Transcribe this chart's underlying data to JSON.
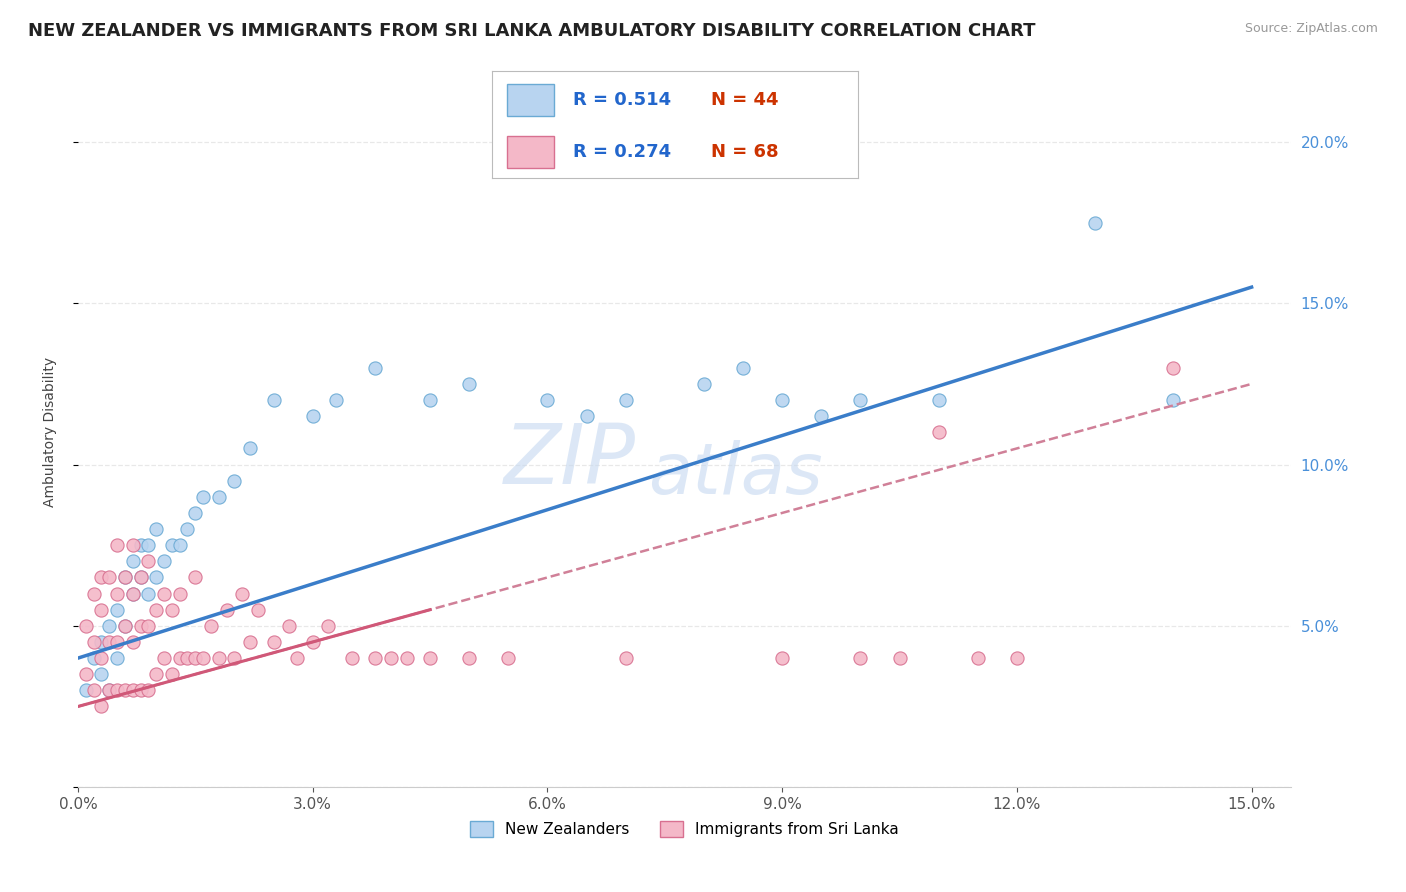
{
  "title": "NEW ZEALANDER VS IMMIGRANTS FROM SRI LANKA AMBULATORY DISABILITY CORRELATION CHART",
  "source": "Source: ZipAtlas.com",
  "ylabel": "Ambulatory Disability",
  "watermark_zip": "ZIP",
  "watermark_atlas": "atlas",
  "R_nz": 0.514,
  "N_nz": 44,
  "R_sl": 0.274,
  "N_sl": 68,
  "color_nz": "#b8d4f0",
  "color_nz_edge": "#6aaad4",
  "color_nz_line": "#3a7dc9",
  "color_sl": "#f4b8c8",
  "color_sl_edge": "#d87090",
  "color_sl_line": "#d05878",
  "color_sl_dash": "#d08098",
  "xlim": [
    0.0,
    0.155
  ],
  "ylim": [
    0.0,
    0.22
  ],
  "xticks": [
    0.0,
    0.03,
    0.06,
    0.09,
    0.12,
    0.15
  ],
  "yticks": [
    0.05,
    0.1,
    0.15,
    0.2
  ],
  "background_color": "#ffffff",
  "grid_color": "#e8e8e8",
  "title_fontsize": 13,
  "label_fontsize": 10,
  "tick_fontsize": 11,
  "legend_fontsize": 13,
  "right_tick_color": "#4a90d9",
  "nz_x": [
    0.001,
    0.002,
    0.003,
    0.003,
    0.004,
    0.004,
    0.005,
    0.005,
    0.006,
    0.006,
    0.007,
    0.007,
    0.008,
    0.008,
    0.009,
    0.009,
    0.01,
    0.01,
    0.011,
    0.012,
    0.013,
    0.014,
    0.015,
    0.016,
    0.018,
    0.02,
    0.022,
    0.025,
    0.03,
    0.033,
    0.038,
    0.045,
    0.05,
    0.06,
    0.065,
    0.07,
    0.08,
    0.085,
    0.09,
    0.095,
    0.1,
    0.11,
    0.13,
    0.14
  ],
  "nz_y": [
    0.03,
    0.04,
    0.035,
    0.045,
    0.03,
    0.05,
    0.04,
    0.055,
    0.05,
    0.065,
    0.06,
    0.07,
    0.065,
    0.075,
    0.06,
    0.075,
    0.065,
    0.08,
    0.07,
    0.075,
    0.075,
    0.08,
    0.085,
    0.09,
    0.09,
    0.095,
    0.105,
    0.12,
    0.115,
    0.12,
    0.13,
    0.12,
    0.125,
    0.12,
    0.115,
    0.12,
    0.125,
    0.13,
    0.12,
    0.115,
    0.12,
    0.12,
    0.175,
    0.12
  ],
  "sl_x": [
    0.001,
    0.001,
    0.002,
    0.002,
    0.002,
    0.003,
    0.003,
    0.003,
    0.003,
    0.004,
    0.004,
    0.004,
    0.005,
    0.005,
    0.005,
    0.005,
    0.006,
    0.006,
    0.006,
    0.007,
    0.007,
    0.007,
    0.007,
    0.008,
    0.008,
    0.008,
    0.009,
    0.009,
    0.009,
    0.01,
    0.01,
    0.011,
    0.011,
    0.012,
    0.012,
    0.013,
    0.013,
    0.014,
    0.015,
    0.015,
    0.016,
    0.017,
    0.018,
    0.019,
    0.02,
    0.021,
    0.022,
    0.023,
    0.025,
    0.027,
    0.028,
    0.03,
    0.032,
    0.035,
    0.038,
    0.04,
    0.042,
    0.045,
    0.05,
    0.055,
    0.07,
    0.09,
    0.1,
    0.105,
    0.11,
    0.115,
    0.12,
    0.14
  ],
  "sl_y": [
    0.035,
    0.05,
    0.03,
    0.045,
    0.06,
    0.025,
    0.04,
    0.055,
    0.065,
    0.03,
    0.045,
    0.065,
    0.03,
    0.045,
    0.06,
    0.075,
    0.03,
    0.05,
    0.065,
    0.03,
    0.045,
    0.06,
    0.075,
    0.03,
    0.05,
    0.065,
    0.03,
    0.05,
    0.07,
    0.035,
    0.055,
    0.04,
    0.06,
    0.035,
    0.055,
    0.04,
    0.06,
    0.04,
    0.04,
    0.065,
    0.04,
    0.05,
    0.04,
    0.055,
    0.04,
    0.06,
    0.045,
    0.055,
    0.045,
    0.05,
    0.04,
    0.045,
    0.05,
    0.04,
    0.04,
    0.04,
    0.04,
    0.04,
    0.04,
    0.04,
    0.04,
    0.04,
    0.04,
    0.04,
    0.11,
    0.04,
    0.04,
    0.13
  ]
}
